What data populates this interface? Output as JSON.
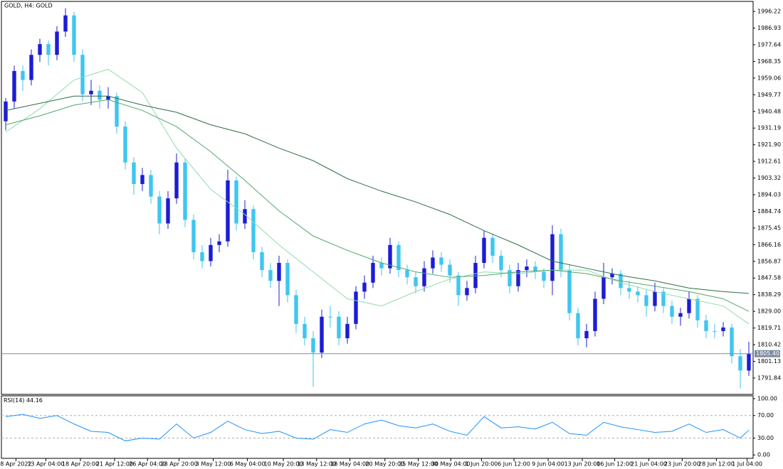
{
  "chart_data": [
    {
      "type": "candlestick",
      "title": "GOLD, H4:  GOLD",
      "up_color": "#1c1cd6",
      "down_color": "#3ec6f0",
      "xlim": [
        -0.5,
        87.5
      ],
      "ylim": [
        1782.7,
        2001.8
      ],
      "yticks": [
        1996.22,
        1986.93,
        1977.64,
        1968.35,
        1959.06,
        1949.77,
        1940.48,
        1931.19,
        {
          "value": 1921.9,
          "label": "1921.90"
        },
        1912.61,
        1903.32,
        1894.03,
        1884.74,
        1875.45,
        1866.16,
        1856.87,
        1847.58,
        1838.29,
        {
          "value": 1829,
          "label": "1829.00"
        },
        1819.71,
        1810.42,
        1801.13,
        1791.84
      ],
      "xticks": [
        {
          "value": 1.2,
          "label": "8 Apr 2022"
        },
        {
          "value": 4.7,
          "label": "13 Apr 04:00"
        },
        {
          "value": 8.75,
          "label": "18 Apr 20:00"
        },
        {
          "value": 12.75,
          "label": "21 Apr 12:00"
        },
        {
          "value": 16.6,
          "label": "26 Apr 04:00"
        },
        {
          "value": 20.3,
          "label": "28 Apr 20:00"
        },
        {
          "value": 24.3,
          "label": "3 May 12:00"
        },
        {
          "value": 28.3,
          "label": "6 May 04:00"
        },
        {
          "value": 32.5,
          "label": "10 May 20:00"
        },
        {
          "value": 36.4,
          "label": "13 May 12:00"
        },
        {
          "value": 40.3,
          "label": "18 May 04:00"
        },
        {
          "value": 44.4,
          "label": "20 May 20:00"
        },
        {
          "value": 48.3,
          "label": "25 May 12:00"
        },
        {
          "value": 52.1,
          "label": "30 May 04:00"
        },
        {
          "value": 55.7,
          "label": "1 Jun 20:00"
        },
        {
          "value": 59.5,
          "label": "6 Jun 12:00"
        },
        {
          "value": 63.5,
          "label": "9 Jun 04:00"
        },
        {
          "value": 67.5,
          "label": "13 Jun 20:00"
        },
        {
          "value": 71.3,
          "label": "16 Jun 12:00"
        },
        {
          "value": 75.3,
          "label": "21 Jun 04:00"
        },
        {
          "value": 79.2,
          "label": "23 Jun 20:00"
        },
        {
          "value": 83.2,
          "label": "28 Jun 12:00"
        },
        {
          "value": 86.8,
          "label": "1 Jul 04:00"
        }
      ],
      "last_price": {
        "value": 1805.4,
        "label": "1805.40"
      },
      "last_price_color": "#7d8da0",
      "ohlc": [
        [
          1935,
          1948,
          1930,
          1946
        ],
        [
          1946,
          1966,
          1942,
          1963
        ],
        [
          1963,
          1966,
          1952,
          1958
        ],
        [
          1958,
          1975,
          1955,
          1972
        ],
        [
          1972,
          1981,
          1968,
          1978
        ],
        [
          1978,
          1980,
          1966,
          1972
        ],
        [
          1972,
          1988,
          1969,
          1985
        ],
        [
          1985,
          1998,
          1982,
          1994
        ],
        [
          1994,
          1996,
          1968,
          1972
        ],
        [
          1972,
          1975,
          1946,
          1950
        ],
        [
          1950,
          1958,
          1944,
          1952
        ],
        [
          1952,
          1955,
          1942,
          1947
        ],
        [
          1947,
          1954,
          1942,
          1949
        ],
        [
          1949,
          1951,
          1928,
          1932
        ],
        [
          1932,
          1935,
          1908,
          1912
        ],
        [
          1912,
          1915,
          1894,
          1900
        ],
        [
          1900,
          1909,
          1896,
          1905
        ],
        [
          1905,
          1908,
          1889,
          1893
        ],
        [
          1893,
          1896,
          1872,
          1878
        ],
        [
          1878,
          1896,
          1875,
          1892
        ],
        [
          1892,
          1917,
          1889,
          1912
        ],
        [
          1912,
          1914,
          1876,
          1880
        ],
        [
          1880,
          1883,
          1858,
          1862
        ],
        [
          1862,
          1866,
          1853,
          1857
        ],
        [
          1857,
          1870,
          1854,
          1866
        ],
        [
          1866,
          1872,
          1862,
          1868
        ],
        [
          1868,
          1908,
          1865,
          1902
        ],
        [
          1902,
          1904,
          1874,
          1878
        ],
        [
          1878,
          1891,
          1875,
          1886
        ],
        [
          1886,
          1888,
          1858,
          1862
        ],
        [
          1862,
          1865,
          1848,
          1852
        ],
        [
          1852,
          1856,
          1842,
          1846
        ],
        [
          1846,
          1860,
          1832,
          1856
        ],
        [
          1856,
          1858,
          1834,
          1838
        ],
        [
          1838,
          1841,
          1817,
          1822
        ],
        [
          1822,
          1826,
          1810,
          1814
        ],
        [
          1814,
          1818,
          1787,
          1806
        ],
        [
          1806,
          1830,
          1803,
          1826
        ],
        [
          1826,
          1832,
          1820,
          1826
        ],
        [
          1826,
          1829,
          1810,
          1814
        ],
        [
          1814,
          1826,
          1811,
          1822
        ],
        [
          1822,
          1843,
          1819,
          1840
        ],
        [
          1840,
          1849,
          1836,
          1845
        ],
        [
          1845,
          1860,
          1842,
          1856
        ],
        [
          1856,
          1859,
          1849,
          1853
        ],
        [
          1853,
          1870,
          1850,
          1866
        ],
        [
          1866,
          1868,
          1848,
          1852
        ],
        [
          1852,
          1855,
          1844,
          1848
        ],
        [
          1848,
          1851,
          1839,
          1843
        ],
        [
          1843,
          1857,
          1840,
          1853
        ],
        [
          1853,
          1863,
          1850,
          1859
        ],
        [
          1859,
          1862,
          1851,
          1855
        ],
        [
          1855,
          1858,
          1845,
          1849
        ],
        [
          1849,
          1851,
          1832,
          1838
        ],
        [
          1838,
          1846,
          1835,
          1842
        ],
        [
          1842,
          1860,
          1839,
          1856
        ],
        [
          1856,
          1874,
          1853,
          1870
        ],
        [
          1870,
          1872,
          1856,
          1860
        ],
        [
          1860,
          1863,
          1848,
          1852
        ],
        [
          1852,
          1855,
          1839,
          1843
        ],
        [
          1843,
          1856,
          1840,
          1852
        ],
        [
          1852,
          1858,
          1848,
          1854
        ],
        [
          1854,
          1857,
          1847,
          1851
        ],
        [
          1851,
          1853,
          1842,
          1846
        ],
        [
          1846,
          1877,
          1838,
          1872
        ],
        [
          1872,
          1875,
          1848,
          1852
        ],
        [
          1852,
          1855,
          1824,
          1828
        ],
        [
          1828,
          1831,
          1810,
          1814
        ],
        [
          1814,
          1822,
          1809,
          1818
        ],
        [
          1818,
          1840,
          1815,
          1836
        ],
        [
          1836,
          1856,
          1833,
          1848
        ],
        [
          1848,
          1853,
          1844,
          1850
        ],
        [
          1850,
          1852,
          1838,
          1842
        ],
        [
          1842,
          1846,
          1836,
          1840
        ],
        [
          1840,
          1843,
          1834,
          1838
        ],
        [
          1838,
          1841,
          1826,
          1832
        ],
        [
          1832,
          1845,
          1829,
          1840
        ],
        [
          1840,
          1842,
          1828,
          1832
        ],
        [
          1832,
          1835,
          1822,
          1826
        ],
        [
          1826,
          1831,
          1821,
          1828
        ],
        [
          1828,
          1840,
          1825,
          1836
        ],
        [
          1836,
          1838,
          1820,
          1824
        ],
        [
          1824,
          1827,
          1814,
          1818
        ],
        [
          1818,
          1822,
          1814,
          1818
        ],
        [
          1818,
          1823,
          1815,
          1820
        ],
        [
          1820,
          1822,
          1800,
          1804
        ],
        [
          1804,
          1808,
          1786,
          1796
        ],
        [
          1796,
          1812,
          1793,
          1805.4
        ]
      ],
      "series": [
        {
          "color": "#8fdcaa",
          "x": [
            0,
            4,
            8,
            12,
            16,
            20,
            24,
            28,
            32,
            36,
            40,
            44,
            48,
            52,
            56,
            60,
            64,
            68,
            72,
            76,
            80,
            84,
            87
          ],
          "values": [
            1929,
            1942,
            1958,
            1964,
            1951,
            1920,
            1897,
            1883,
            1866,
            1851,
            1836,
            1832,
            1840,
            1847,
            1851,
            1850,
            1852,
            1852,
            1845,
            1840,
            1836,
            1832,
            1822
          ]
        },
        {
          "color": "#4fa86a",
          "x": [
            0,
            4,
            8,
            12,
            16,
            20,
            24,
            28,
            32,
            36,
            40,
            44,
            48,
            52,
            56,
            60,
            64,
            68,
            72,
            76,
            80,
            84,
            87
          ],
          "values": [
            1933,
            1938,
            1944,
            1947,
            1941,
            1932,
            1918,
            1902,
            1885,
            1871,
            1863,
            1856,
            1851,
            1848,
            1849,
            1851,
            1852,
            1850,
            1846,
            1843,
            1840,
            1836,
            1829
          ]
        },
        {
          "color": "#2e6e44",
          "x": [
            0,
            4,
            8,
            12,
            16,
            20,
            24,
            28,
            32,
            36,
            40,
            44,
            48,
            52,
            56,
            60,
            64,
            68,
            72,
            76,
            80,
            84,
            87
          ],
          "values": [
            1941,
            1945,
            1949,
            1949,
            1944,
            1940,
            1933,
            1928,
            1920,
            1913,
            1903,
            1896,
            1890,
            1883,
            1874,
            1866,
            1857,
            1853,
            1849,
            1846,
            1842,
            1840,
            1839
          ]
        }
      ]
    },
    {
      "type": "line",
      "title": "RSI(14)",
      "color": "#1e90ff",
      "xlim": [
        -0.5,
        87.5
      ],
      "ylim": [
        -6,
        105
      ],
      "yticks": [
        {
          "value": 100,
          "label": "100.00"
        },
        {
          "value": 70,
          "label": "70.00"
        },
        {
          "value": 30,
          "label": "30.00"
        },
        {
          "value": 0,
          "label": "0.00"
        }
      ],
      "levels": [
        70,
        30
      ],
      "x": [
        0,
        2,
        4,
        6,
        8,
        10,
        12,
        14,
        16,
        18,
        20,
        22,
        24,
        26,
        28,
        30,
        32,
        34,
        36,
        38,
        40,
        42,
        44,
        46,
        48,
        50,
        52,
        54,
        56,
        58,
        60,
        62,
        64,
        66,
        68,
        70,
        72,
        74,
        76,
        78,
        80,
        82,
        84,
        86,
        87
      ],
      "values": [
        68,
        72,
        65,
        70,
        55,
        42,
        40,
        25,
        30,
        28,
        55,
        30,
        40,
        60,
        45,
        38,
        42,
        30,
        28,
        45,
        40,
        55,
        62,
        52,
        48,
        55,
        42,
        35,
        68,
        48,
        50,
        46,
        58,
        38,
        35,
        58,
        50,
        45,
        40,
        42,
        55,
        40,
        45,
        30,
        44.16
      ]
    }
  ]
}
